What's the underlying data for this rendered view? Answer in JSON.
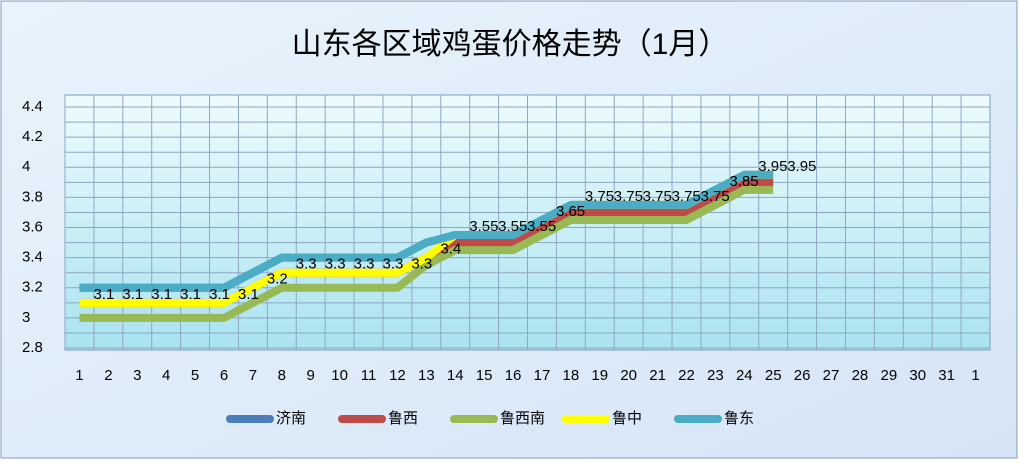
{
  "chart_data": {
    "type": "line",
    "title": "山东各区域鸡蛋价格走势（1月）",
    "categories": [
      "1",
      "2",
      "3",
      "4",
      "5",
      "6",
      "7",
      "8",
      "9",
      "10",
      "11",
      "12",
      "13",
      "14",
      "15",
      "16",
      "17",
      "18",
      "19",
      "20",
      "21",
      "22",
      "23",
      "24",
      "25",
      "26",
      "27",
      "28",
      "29",
      "30",
      "31",
      "1"
    ],
    "ylim": [
      2.8,
      4.4
    ],
    "yticks": [
      2.8,
      3,
      3.2,
      3.4,
      3.6,
      3.8,
      4,
      4.2,
      4.4
    ],
    "grid": true,
    "legend": "bottom",
    "series": [
      {
        "name": "济南",
        "color": "#4a7ebb",
        "values": [
          3.2,
          3.2,
          3.2,
          3.2,
          3.2,
          3.2,
          3.3,
          3.4,
          3.4,
          3.4,
          3.4,
          3.4,
          3.5,
          3.55,
          3.55,
          3.55,
          3.65,
          3.75,
          3.75,
          3.75,
          3.75,
          3.75,
          3.85,
          3.95,
          3.95,
          null,
          null,
          null,
          null,
          null,
          null,
          null
        ]
      },
      {
        "name": "鲁西",
        "color": "#be4b48",
        "values": [
          3.1,
          3.1,
          3.1,
          3.1,
          3.1,
          3.1,
          3.2,
          3.3,
          3.3,
          3.3,
          3.3,
          3.3,
          3.4,
          3.5,
          3.5,
          3.5,
          3.6,
          3.7,
          3.7,
          3.7,
          3.7,
          3.7,
          3.8,
          3.9,
          3.9,
          null,
          null,
          null,
          null,
          null,
          null,
          null
        ]
      },
      {
        "name": "鲁西南",
        "color": "#98b954",
        "values": [
          3,
          3,
          3,
          3,
          3,
          3,
          3.1,
          3.2,
          3.2,
          3.2,
          3.2,
          3.2,
          3.35,
          3.45,
          3.45,
          3.45,
          3.55,
          3.65,
          3.65,
          3.65,
          3.65,
          3.65,
          3.75,
          3.85,
          3.85,
          null,
          null,
          null,
          null,
          null,
          null,
          null
        ]
      },
      {
        "name": "鲁中",
        "color": "#ffff00",
        "show_labels": true,
        "values": [
          3.1,
          3.1,
          3.1,
          3.1,
          3.1,
          3.1,
          3.2,
          3.3,
          3.3,
          3.3,
          3.3,
          3.3,
          3.4,
          3.55,
          3.55,
          3.55,
          3.65,
          3.75,
          3.75,
          3.75,
          3.75,
          3.75,
          3.85,
          3.95,
          3.95,
          null,
          null,
          null,
          null,
          null,
          null,
          null
        ]
      },
      {
        "name": "鲁东",
        "color": "#4bacc6",
        "values": [
          3.2,
          3.2,
          3.2,
          3.2,
          3.2,
          3.2,
          3.3,
          3.4,
          3.4,
          3.4,
          3.4,
          3.4,
          3.5,
          3.55,
          3.55,
          3.55,
          3.65,
          3.75,
          3.75,
          3.75,
          3.75,
          3.75,
          3.85,
          3.95,
          3.95,
          null,
          null,
          null,
          null,
          null,
          null,
          null
        ]
      }
    ]
  }
}
